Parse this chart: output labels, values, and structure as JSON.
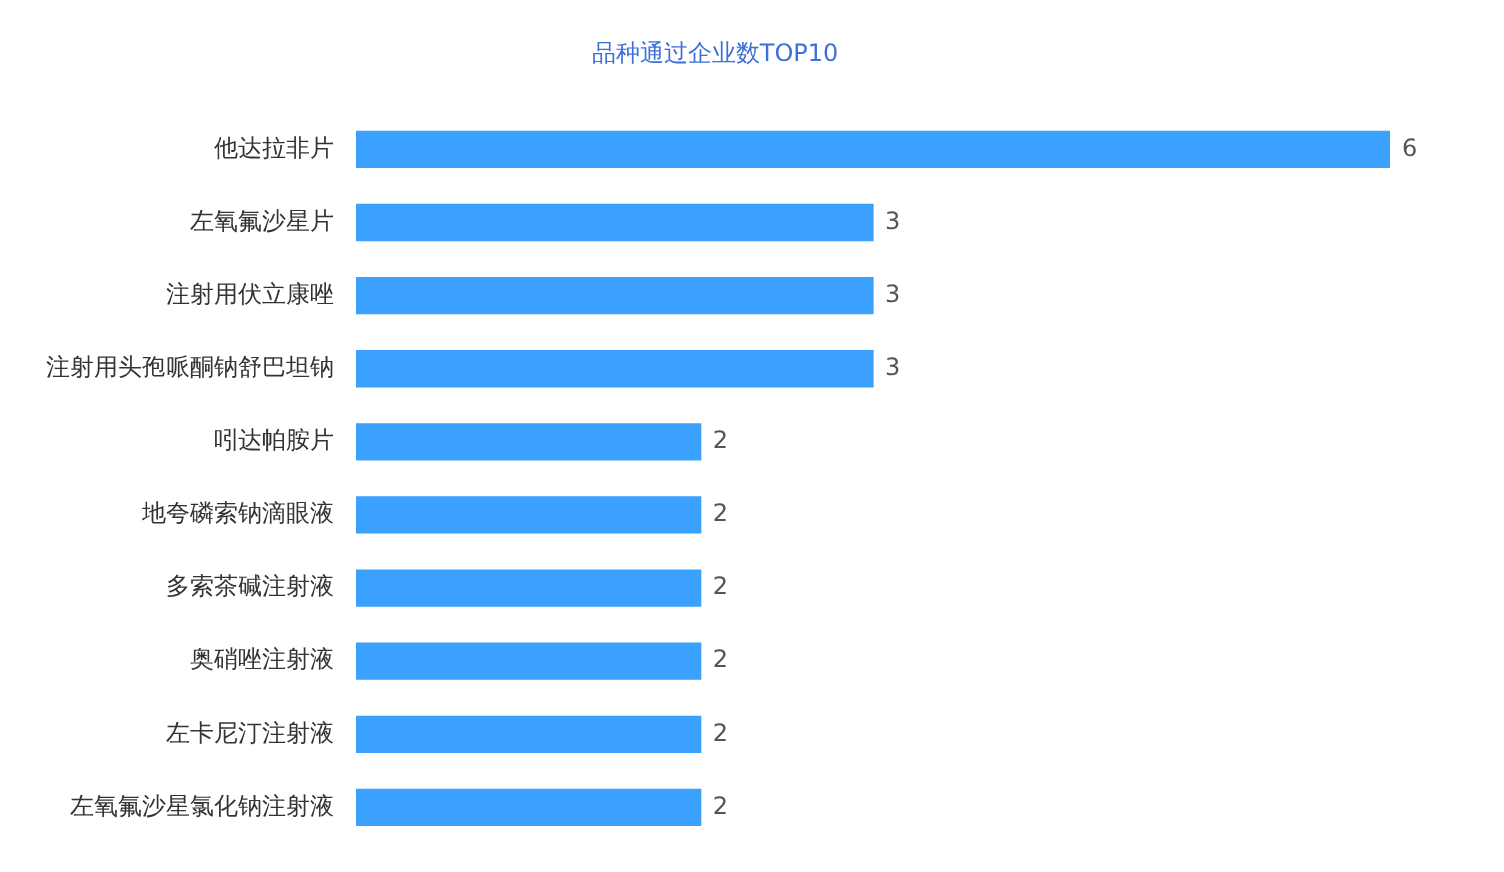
{
  "chart_data": {
    "type": "bar",
    "orientation": "horizontal",
    "title": "品种通过企业数TOP10",
    "categories": [
      "他达拉非片",
      "左氧氟沙星片",
      "注射用伏立康唑",
      "注射用头孢哌酮钠舒巴坦钠",
      "吲达帕胺片",
      "地夸磷索钠滴眼液",
      "多索茶碱注射液",
      "奥硝唑注射液",
      "左卡尼汀注射液",
      "左氧氟沙星氯化钠注射液"
    ],
    "values": [
      6,
      3,
      3,
      3,
      2,
      2,
      2,
      2,
      2,
      2
    ],
    "color": "#3ba1ff",
    "data_labels": true,
    "legend": false,
    "tick_labels": "y"
  }
}
